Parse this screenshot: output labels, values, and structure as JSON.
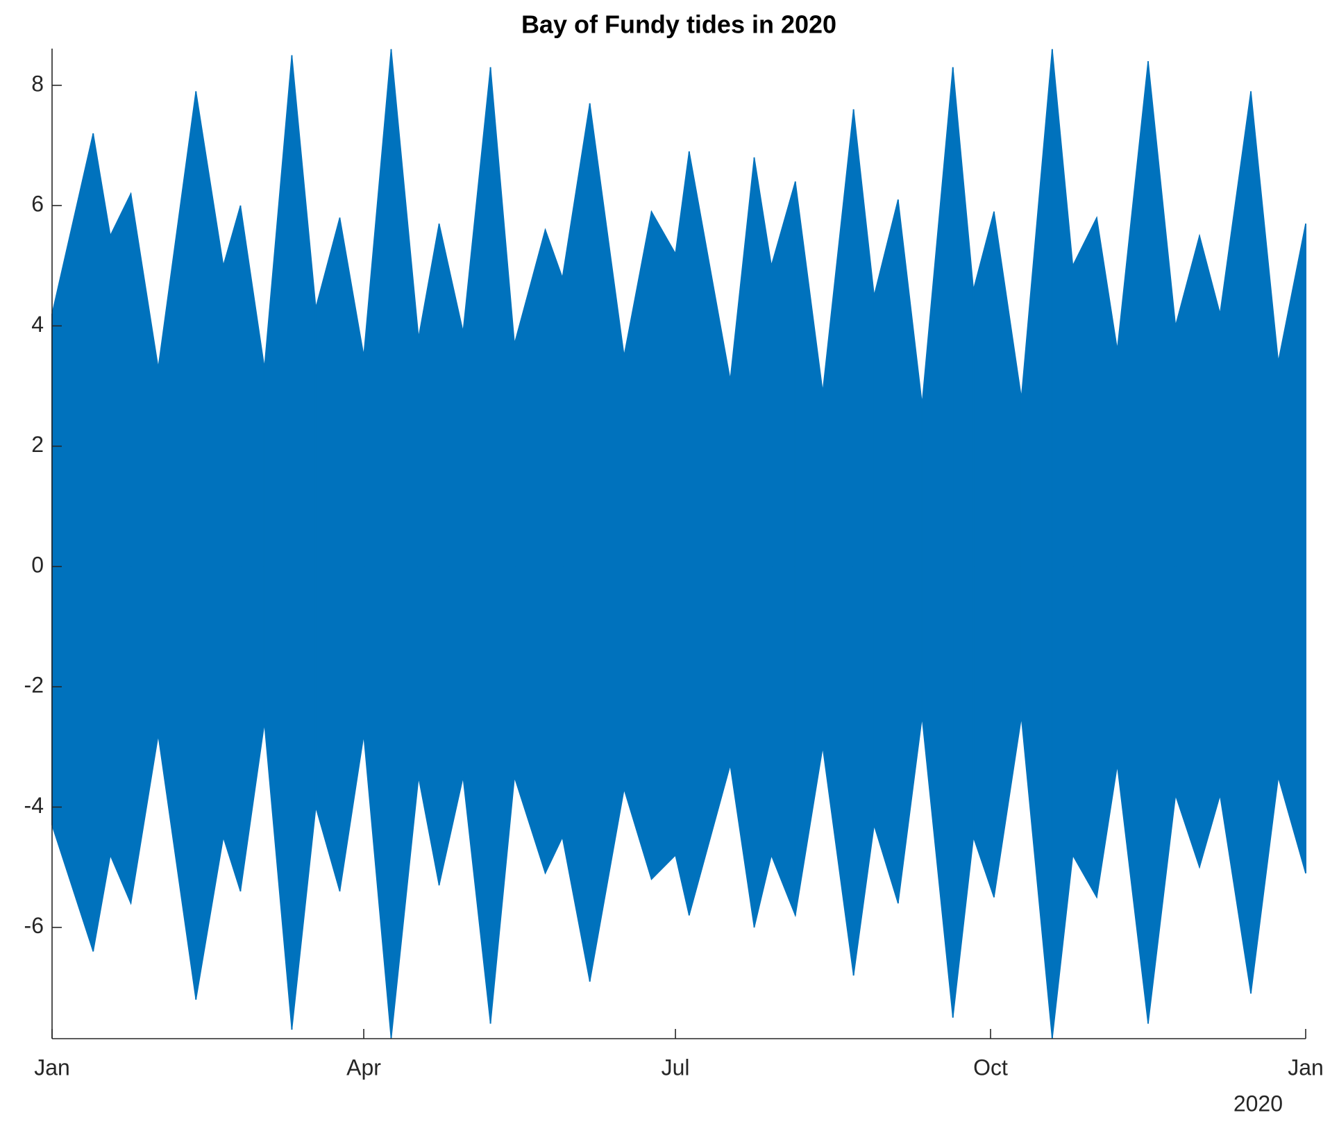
{
  "chart_data": {
    "type": "area_range",
    "title": "Bay of Fundy tides in 2020",
    "year_label": "2020",
    "color": "#0072bd",
    "x": [
      0,
      12,
      17,
      23,
      31,
      42,
      50,
      55,
      62,
      70,
      77,
      84,
      91,
      99,
      107,
      113,
      120,
      128,
      135,
      144,
      149,
      157,
      167,
      175,
      182,
      186,
      198,
      205,
      210,
      217,
      225,
      234,
      240,
      247,
      254,
      263,
      269,
      275,
      283,
      292,
      298,
      305,
      311,
      320,
      328,
      335,
      341,
      350,
      358,
      366
    ],
    "high": [
      4.2,
      7.2,
      5.5,
      6.2,
      3.3,
      7.9,
      5.0,
      6.0,
      3.3,
      8.5,
      4.3,
      5.8,
      3.5,
      8.6,
      3.8,
      5.7,
      3.9,
      8.3,
      3.7,
      5.6,
      4.8,
      7.7,
      3.5,
      5.9,
      5.2,
      6.9,
      3.1,
      6.8,
      5.0,
      6.4,
      2.9,
      7.6,
      4.5,
      6.1,
      2.7,
      8.3,
      4.6,
      5.9,
      2.8,
      8.6,
      5.0,
      5.8,
      3.6,
      8.4,
      4.0,
      5.5,
      4.2,
      7.9,
      3.4,
      5.7
    ],
    "low": [
      -4.3,
      -6.4,
      -4.8,
      -5.6,
      -2.8,
      -7.2,
      -4.5,
      -5.4,
      -2.6,
      -7.7,
      -4.0,
      -5.4,
      -2.8,
      -7.85,
      -3.5,
      -5.3,
      -3.5,
      -7.6,
      -3.5,
      -5.1,
      -4.5,
      -6.9,
      -3.7,
      -5.2,
      -4.8,
      -5.8,
      -3.3,
      -6.0,
      -4.8,
      -5.8,
      -3.0,
      -6.8,
      -4.3,
      -5.6,
      -2.5,
      -7.5,
      -4.5,
      -5.5,
      -2.5,
      -7.85,
      -4.8,
      -5.5,
      -3.3,
      -7.6,
      -3.8,
      -5.0,
      -3.8,
      -7.1,
      -3.5,
      -5.1
    ],
    "xlim": [
      0,
      366
    ],
    "xticks": [
      {
        "value": 0,
        "label": "Jan"
      },
      {
        "value": 91,
        "label": "Apr"
      },
      {
        "value": 182,
        "label": "Jul"
      },
      {
        "value": 274,
        "label": "Oct"
      },
      {
        "value": 366,
        "label": "Jan"
      }
    ],
    "ylim": [
      -7.85,
      8.61
    ],
    "yticks": [
      -6,
      -4,
      -2,
      0,
      2,
      4,
      6,
      8
    ],
    "grid": false
  }
}
